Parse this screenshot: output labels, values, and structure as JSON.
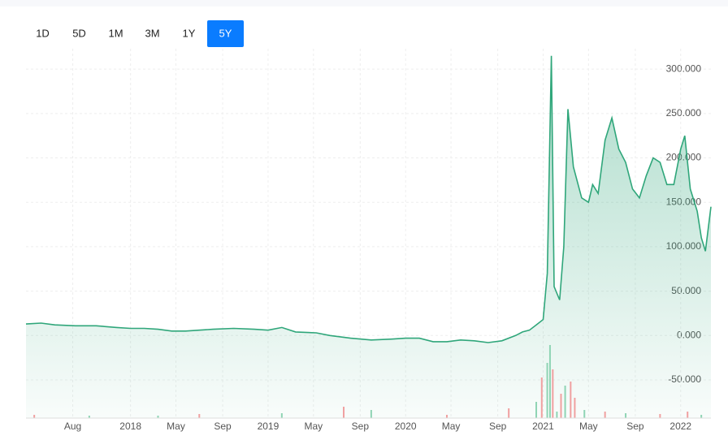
{
  "range_buttons": [
    "1D",
    "5D",
    "1M",
    "3M",
    "1Y",
    "5Y"
  ],
  "active_button": 5,
  "chart_data": {
    "type": "area",
    "series": [
      {
        "color": "#2fa67a",
        "x": [
          2017.24,
          2017.35,
          2017.45,
          2017.6,
          2017.75,
          2017.9,
          2018.0,
          2018.1,
          2018.2,
          2018.3,
          2018.4,
          2018.5,
          2018.6,
          2018.75,
          2018.9,
          2019.0,
          2019.1,
          2019.2,
          2019.35,
          2019.45,
          2019.6,
          2019.75,
          2019.9,
          2020.0,
          2020.1,
          2020.2,
          2020.3,
          2020.4,
          2020.5,
          2020.6,
          2020.7,
          2020.8,
          2020.85,
          2020.9,
          2020.95,
          2021.0,
          2021.03,
          2021.06,
          2021.08,
          2021.12,
          2021.15,
          2021.18,
          2021.22,
          2021.28,
          2021.33,
          2021.36,
          2021.4,
          2021.45,
          2021.5,
          2021.55,
          2021.6,
          2021.65,
          2021.7,
          2021.75,
          2021.8,
          2021.85,
          2021.9,
          2021.95,
          2022.0,
          2022.03,
          2022.07,
          2022.12,
          2022.15,
          2022.18,
          2022.22
        ],
        "values": [
          13,
          14,
          12,
          11,
          11,
          9,
          8,
          8,
          7,
          5,
          5,
          6,
          7,
          8,
          7,
          6,
          9,
          4,
          3,
          0,
          -3,
          -5,
          -4,
          -3,
          -3,
          -7,
          -7,
          -5,
          -6,
          -8,
          -6,
          0,
          4,
          6,
          12,
          18,
          70,
          315,
          55,
          40,
          100,
          255,
          190,
          155,
          150,
          170,
          160,
          220,
          245,
          210,
          195,
          165,
          155,
          180,
          200,
          195,
          170,
          170,
          210,
          225,
          165,
          140,
          110,
          95,
          145
        ]
      }
    ],
    "volume": {
      "x": [
        2017.3,
        2017.7,
        2018.2,
        2018.5,
        2019.1,
        2019.55,
        2019.75,
        2020.3,
        2020.75,
        2020.95,
        2020.99,
        2021.03,
        2021.05,
        2021.07,
        2021.1,
        2021.13,
        2021.16,
        2021.2,
        2021.23,
        2021.3,
        2021.45,
        2021.6,
        2021.85,
        2022.05,
        2022.15
      ],
      "values": [
        4,
        3,
        3,
        5,
        6,
        14,
        10,
        4,
        12,
        20,
        50,
        68,
        90,
        60,
        8,
        30,
        40,
        45,
        25,
        10,
        8,
        6,
        5,
        8,
        4
      ],
      "up": [
        false,
        true,
        true,
        false,
        true,
        false,
        true,
        false,
        false,
        true,
        false,
        true,
        true,
        false,
        true,
        false,
        true,
        false,
        false,
        true,
        false,
        true,
        false,
        false,
        true
      ]
    },
    "xlim": [
      2017.24,
      2022.22
    ],
    "xticks": [
      {
        "value": 2017.58,
        "label": "Aug"
      },
      {
        "value": 2018.0,
        "label": "2018"
      },
      {
        "value": 2018.33,
        "label": "May"
      },
      {
        "value": 2018.67,
        "label": "Sep"
      },
      {
        "value": 2019.0,
        "label": "2019"
      },
      {
        "value": 2019.33,
        "label": "May"
      },
      {
        "value": 2019.67,
        "label": "Sep"
      },
      {
        "value": 2020.0,
        "label": "2020"
      },
      {
        "value": 2020.33,
        "label": "May"
      },
      {
        "value": 2020.67,
        "label": "Sep"
      },
      {
        "value": 2021.0,
        "label": "2021"
      },
      {
        "value": 2021.33,
        "label": "May"
      },
      {
        "value": 2021.67,
        "label": "Sep"
      },
      {
        "value": 2022.0,
        "label": "2022"
      }
    ],
    "ylim": [
      -93,
      323
    ],
    "yticks": [
      {
        "value": -50,
        "label": "-50.000"
      },
      {
        "value": 0,
        "label": "0.000"
      },
      {
        "value": 50,
        "label": "50.000"
      },
      {
        "value": 100,
        "label": "100.000"
      },
      {
        "value": 150,
        "label": "150.000"
      },
      {
        "value": 200,
        "label": "200.000"
      },
      {
        "value": 250,
        "label": "250.000"
      },
      {
        "value": 300,
        "label": "300.000"
      }
    ],
    "grid": true
  }
}
